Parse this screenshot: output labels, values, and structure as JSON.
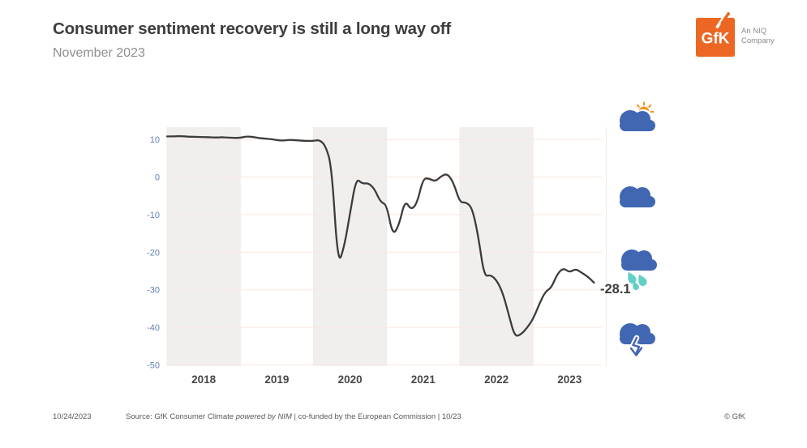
{
  "header": {
    "title": "Consumer sentiment recovery is still a long way off",
    "subtitle": "November 2023"
  },
  "logo": {
    "text": "GfK",
    "tagline_line1": "An NIQ",
    "tagline_line2": "Company",
    "brand_color": "#eb6723",
    "tagline_color": "#8a8a8a"
  },
  "chart_data": {
    "type": "line",
    "series_name": "GfK Consumer Climate",
    "x_start": "2018-01",
    "x_end": "2023-11",
    "categories_years": [
      "2018",
      "2019",
      "2020",
      "2021",
      "2022",
      "2023"
    ],
    "shaded_years": [
      "2018",
      "2020",
      "2022"
    ],
    "yticks": [
      10,
      0,
      -10,
      -20,
      -30,
      -40,
      -50
    ],
    "ylim": [
      -50.5,
      13.5
    ],
    "grid": true,
    "legend": false,
    "monthly_values_by_year": {
      "2018": [
        10.8,
        10.8,
        10.9,
        10.8,
        10.7,
        10.7,
        10.6,
        10.6,
        10.5,
        10.6,
        10.5,
        10.4
      ],
      "2019": [
        10.4,
        10.8,
        10.7,
        10.4,
        10.2,
        10.1,
        9.8,
        9.7,
        9.9,
        9.8,
        9.7,
        9.6
      ],
      "2020": [
        9.6,
        9.9,
        8.3,
        2.7,
        -23.4,
        -18.9,
        -9.6,
        -0.3,
        -1.8,
        -1.6,
        -3.1,
        -6.7
      ],
      "2021": [
        -7.3,
        -15.6,
        -12.9,
        -6.1,
        -8.8,
        -7.0,
        -0.3,
        -0.4,
        -1.2,
        0.3,
        0.9,
        -1.6
      ],
      "2022": [
        -6.8,
        -6.7,
        -8.1,
        -15.5,
        -26.5,
        -26.0,
        -27.4,
        -30.6,
        -36.5,
        -42.5,
        -41.9,
        -40.2
      ],
      "2023": [
        -37.8,
        -33.9,
        -30.5,
        -29.5,
        -25.7,
        -24.2,
        -25.4,
        -24.4,
        -25.5,
        -26.5,
        -28.1
      ]
    },
    "last_point_label": "-28.1",
    "colors": {
      "line": "#3c3c3c",
      "band": "#f0efee",
      "grid": "#f8e8e0",
      "ytick": "#6383b3",
      "xtick": "#474747",
      "last_label": "#3c3c3c"
    }
  },
  "weather_icons": [
    {
      "name": "partly-sunny-icon"
    },
    {
      "name": "cloudy-icon"
    },
    {
      "name": "rainy-icon"
    },
    {
      "name": "downturn-cloud-icon"
    }
  ],
  "icon_colors": {
    "cloud": "#4166b2",
    "sun": "#f2941f",
    "rain": "#63d0c6"
  },
  "current_value": "-28.1",
  "footer": {
    "date": "10/24/2023",
    "source_prefix": "Source: GfK Consumer Climate ",
    "source_italic": "powered by NIM",
    "source_suffix": " | co-funded by the European Commission | 10/23",
    "copyright": "© GfK"
  }
}
